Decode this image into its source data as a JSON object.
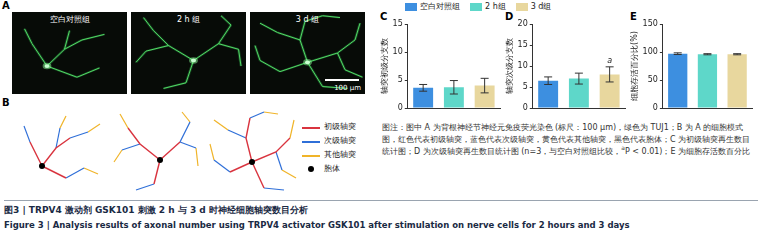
{
  "panel_a": {
    "letter": "A",
    "images": [
      "空白对照组",
      "2 h 组",
      "3 d 组"
    ],
    "scale_bar": "100 μm"
  },
  "panel_b": {
    "letter": "B",
    "legend": [
      {
        "label": "初级轴突",
        "color": "#d9343f"
      },
      {
        "label": "次级轴突",
        "color": "#2f6fd8"
      },
      {
        "label": "其他轴突",
        "color": "#f0b429"
      },
      {
        "label": "胞体",
        "color": "#000000"
      }
    ]
  },
  "chart_letters": [
    "C",
    "D",
    "E"
  ],
  "chart_data": [
    {
      "type": "bar",
      "ylabel": "轴突初级分支数",
      "categories": [
        "空白对照组",
        "2 h组",
        "3 d组"
      ],
      "values": [
        3.6,
        3.7,
        4.0
      ],
      "errors": [
        0.6,
        1.2,
        1.3
      ],
      "colors": [
        "#3d8fe0",
        "#5ed7c9",
        "#e8d79e"
      ],
      "ylim": [
        0,
        15
      ],
      "yticks": [
        0,
        5,
        10,
        15
      ],
      "grid": false,
      "tick_labels": "y",
      "legend": "top"
    },
    {
      "type": "bar",
      "ylabel": "轴突次级分支数",
      "categories": [
        "空白对照组",
        "2 h组",
        "3 d组"
      ],
      "values": [
        6.5,
        7.0,
        8.0
      ],
      "errors": [
        0.9,
        1.3,
        1.8
      ],
      "marks": [
        null,
        null,
        "a"
      ],
      "colors": [
        "#3d8fe0",
        "#5ed7c9",
        "#e8d79e"
      ],
      "ylim": [
        0,
        20
      ],
      "yticks": [
        0,
        5,
        10,
        15,
        20
      ],
      "grid": false,
      "tick_labels": "y"
    },
    {
      "type": "bar",
      "ylabel": "细胞存活百分比(%)",
      "categories": [
        "空白对照组",
        "2 h组",
        "3 d组"
      ],
      "values": [
        97,
        96,
        96
      ],
      "errors": [
        1.5,
        1.0,
        1.0
      ],
      "colors": [
        "#3d8fe0",
        "#5ed7c9",
        "#e8d79e"
      ],
      "ylim": [
        0,
        150
      ],
      "yticks": [
        0,
        50,
        100,
        150
      ],
      "grid": false,
      "tick_labels": "y"
    }
  ],
  "caption": {
    "text_before": "图注：图中 A 为背根神经节神经元免疫荧光染色 (标尺：100 μm)，绿色为 TUJ1；B 为 A 的细胞模式图，红色代表初级轴突，蓝色代表次级轴突，黄色代表其他轴突，黑色代表胞体；C 为初级轴突再生数目统计图；D 为次级轴突再生数目统计图 (n=3，与空白对照组比较，",
    "superscript": "a",
    "text_after": "P < 0.01)；E 为细胞存活数百分比"
  },
  "figure_title": {
    "zh": "图3 | TRPV4 激动剂 GSK101 刺激 2 h 与 3 d 时神经细胞轴突数目分析",
    "en": "Figure 3 | Analysis results of axonal number using TRPV4 activator GSK101 after stimulation on nerve cells for 2 hours and 3 days"
  }
}
